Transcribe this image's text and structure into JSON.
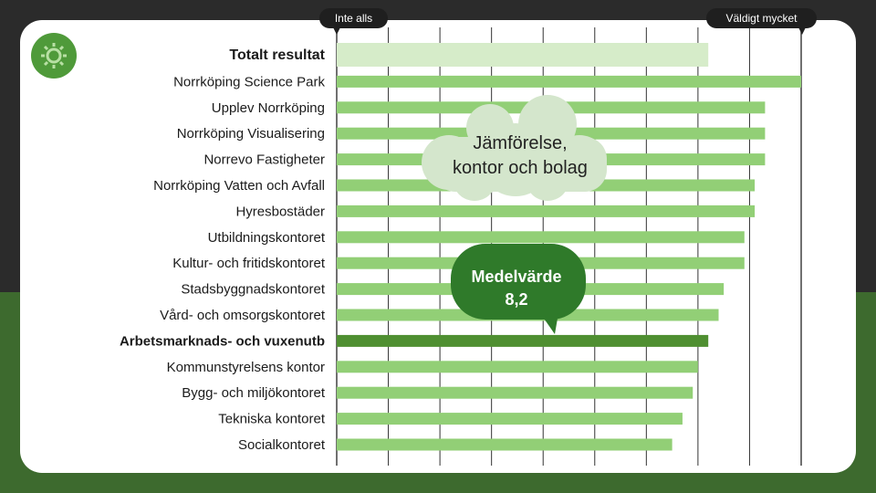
{
  "header": {
    "left_pill": "Inte alls",
    "right_pill": "Väldigt mycket"
  },
  "callouts": {
    "cloud_line1": "Jämförelse,",
    "cloud_line2": "kontor och bolag",
    "bubble_line1": "Medelvärde",
    "bubble_line2": "8,2"
  },
  "icons": {
    "logo": "gear-icon"
  },
  "colors": {
    "bar_default": "#92cf76",
    "bar_total": "#d6ecc9",
    "bar_highlight": "#4f8f31",
    "bubble": "#2f7a2a",
    "cloud": "#d4e6cc"
  },
  "chart_data": {
    "type": "bar",
    "orientation": "horizontal",
    "title": "",
    "xlabel": "",
    "ylabel": "",
    "xlim": [
      1,
      10
    ],
    "x_scale_labels": [
      "Inte alls",
      "Väldigt mycket"
    ],
    "grid": true,
    "categories": [
      "Totalt resultat",
      "Norrköping Science Park",
      "Upplev Norrköping",
      "Norrköping Visualisering",
      "Norrevo Fastigheter",
      "Norrköping Vatten och Avfall",
      "Hyresbostäder",
      "Utbildningskontoret",
      "Kultur- och fritidskontoret",
      "Stadsbyggnadskontoret",
      "Vård- och omsorgskontoret",
      "Arbetsmarknads- och vuxenutb",
      "Kommunstyrelsens kontor",
      "Bygg- och miljökontoret",
      "Tekniska kontoret",
      "Socialkontoret"
    ],
    "values": [
      8.2,
      10.0,
      9.3,
      9.3,
      9.3,
      9.1,
      9.1,
      8.9,
      8.9,
      8.5,
      8.4,
      8.2,
      8.0,
      7.9,
      7.7,
      7.5
    ],
    "bold_categories": [
      "Totalt resultat",
      "Arbetsmarknads- och vuxenutb"
    ],
    "highlight_category": "Arbetsmarknads- och vuxenutb",
    "total_category": "Totalt resultat"
  }
}
